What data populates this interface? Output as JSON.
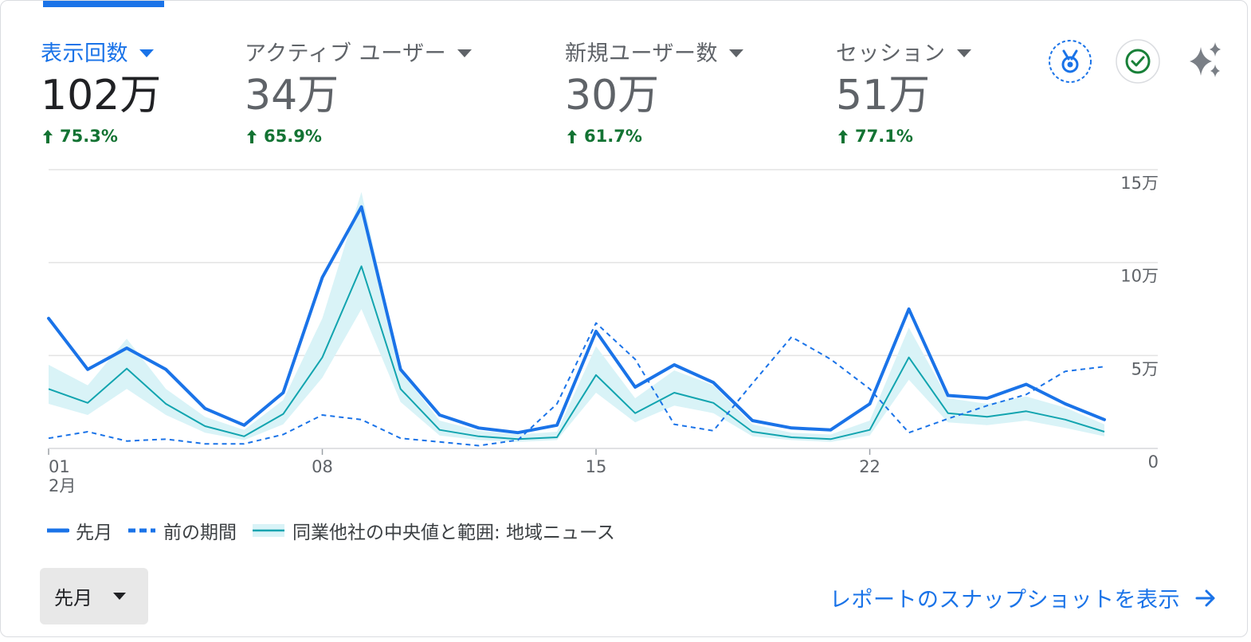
{
  "metrics": [
    {
      "label": "表示回数",
      "value": "102万",
      "change": "75.3%",
      "active": true
    },
    {
      "label": "アクティブ ユーザー",
      "value": "34万",
      "change": "65.9%",
      "active": false
    },
    {
      "label": "新規ユーザー数",
      "value": "30万",
      "change": "61.7%",
      "active": false
    },
    {
      "label": "セッション",
      "value": "51万",
      "change": "77.1%",
      "active": false
    }
  ],
  "icons": {
    "badge": "medal-badge-icon",
    "check": "check-circle-icon",
    "ai": "sparkle-icon"
  },
  "colors": {
    "accent": "#1a73e8",
    "positive": "#137333",
    "benchmark_line": "#12a4af",
    "benchmark_band": "#d9f3f7"
  },
  "chart_data": {
    "type": "line",
    "x": [
      1,
      2,
      3,
      4,
      5,
      6,
      7,
      8,
      9,
      10,
      11,
      12,
      13,
      14,
      15,
      16,
      17,
      18,
      19,
      20,
      21,
      22,
      23,
      24,
      25,
      26,
      27,
      28
    ],
    "x_ticks": [
      {
        "x": 1,
        "label": "01",
        "sublabel": "2月"
      },
      {
        "x": 8,
        "label": "08",
        "sublabel": ""
      },
      {
        "x": 15,
        "label": "15",
        "sublabel": ""
      },
      {
        "x": 22,
        "label": "22",
        "sublabel": ""
      }
    ],
    "y_ticks": [
      {
        "value": 0,
        "label": "0"
      },
      {
        "value": 50000,
        "label": "5万"
      },
      {
        "value": 100000,
        "label": "10万"
      },
      {
        "value": 150000,
        "label": "15万"
      }
    ],
    "ylim": [
      0,
      150000
    ],
    "grid": true,
    "series": [
      {
        "name": "先月",
        "style": "solid",
        "color": "#1a73e8",
        "values": [
          70000,
          42500,
          54000,
          42500,
          21500,
          12500,
          30000,
          92000,
          130000,
          42500,
          18000,
          11000,
          8500,
          12500,
          63000,
          33000,
          45000,
          35500,
          15000,
          11000,
          10000,
          24000,
          75000,
          28500,
          27000,
          34500,
          24000,
          15500
        ]
      },
      {
        "name": "前の期間",
        "style": "dashed",
        "color": "#1a73e8",
        "values": [
          5500,
          9000,
          4000,
          5000,
          2500,
          2500,
          7500,
          18000,
          15500,
          5500,
          3500,
          1500,
          4500,
          24000,
          67500,
          48000,
          13000,
          9500,
          35000,
          60000,
          48000,
          32000,
          8500,
          16000,
          23000,
          29000,
          41500,
          44000
        ]
      },
      {
        "name": "同業他社の中央値と範囲: 地域ニュース",
        "style": "band",
        "color": "#12a4af",
        "values": [
          32000,
          24500,
          43000,
          24000,
          12000,
          6500,
          18500,
          49000,
          98000,
          32000,
          10000,
          6500,
          5000,
          6000,
          39500,
          19000,
          30000,
          24500,
          9000,
          6000,
          5000,
          10000,
          49000,
          19000,
          17000,
          20000,
          15500,
          9000
        ],
        "upper": [
          45000,
          34000,
          59000,
          32000,
          17000,
          10000,
          26000,
          70000,
          138000,
          42000,
          15000,
          9500,
          7500,
          9000,
          55000,
          27000,
          42000,
          34000,
          13000,
          8500,
          7500,
          15000,
          65000,
          27000,
          24000,
          28000,
          22000,
          13000
        ],
        "lower": [
          24000,
          18000,
          32000,
          18000,
          8500,
          4500,
          13000,
          38000,
          75000,
          25000,
          7000,
          4500,
          3500,
          4500,
          30000,
          14000,
          23000,
          19000,
          6500,
          4500,
          3500,
          7000,
          37000,
          14000,
          12500,
          15000,
          11000,
          6500
        ]
      }
    ]
  },
  "period_select": {
    "label": "先月"
  },
  "report_link": {
    "label": "レポートのスナップショットを表示"
  }
}
